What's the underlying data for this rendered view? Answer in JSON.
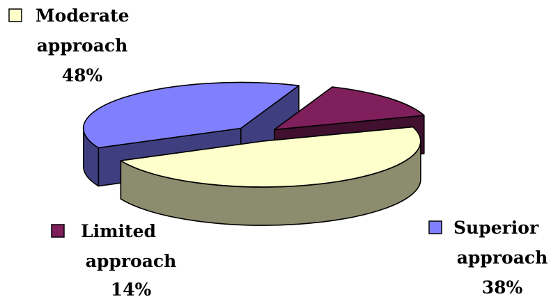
{
  "chart_data": {
    "type": "pie",
    "style": "3d-exploded",
    "title": "",
    "slices": [
      {
        "label_lines": [
          "Moderate",
          "approach"
        ],
        "value": 48,
        "pct_text": "48%",
        "color": "#FFFFCC",
        "side_color": "#8C8C6E"
      },
      {
        "label_lines": [
          "Superior",
          "approach"
        ],
        "value": 38,
        "pct_text": "38%",
        "color": "#8080FF",
        "side_color": "#3F3F80"
      },
      {
        "label_lines": [
          "Limited",
          "approach"
        ],
        "value": 14,
        "pct_text": "14%",
        "color": "#7F1F5C",
        "side_color": "#40102E"
      }
    ],
    "legend_markers": true
  }
}
